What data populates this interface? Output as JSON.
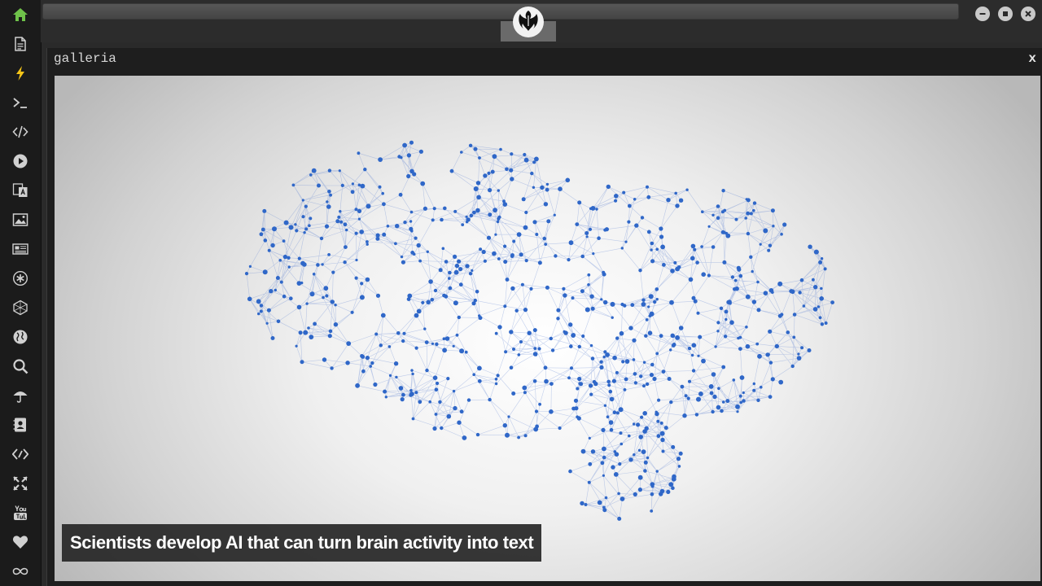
{
  "window": {
    "title": "galleria",
    "close_label": "x"
  },
  "caption": {
    "text": "Scientists develop AI that can turn brain activity into text"
  },
  "sidebar": {
    "items": [
      {
        "icon": "home-icon",
        "color": "#6fc24a"
      },
      {
        "icon": "document-icon",
        "color": "#d0d0d0"
      },
      {
        "icon": "lightning-icon",
        "color": "#f5c518"
      },
      {
        "icon": "terminal-icon",
        "color": "#d0d0d0"
      },
      {
        "icon": "code-icon",
        "color": "#d0d0d0"
      },
      {
        "icon": "play-icon",
        "color": "#d0d0d0"
      },
      {
        "icon": "translate-icon",
        "color": "#d0d0d0"
      },
      {
        "icon": "image-icon",
        "color": "#d0d0d0"
      },
      {
        "icon": "newspaper-icon",
        "color": "#d0d0d0"
      },
      {
        "icon": "asterisk-icon",
        "color": "#d0d0d0"
      },
      {
        "icon": "hexagon-icon",
        "color": "#d0d0d0"
      },
      {
        "icon": "globe-icon",
        "color": "#d0d0d0"
      },
      {
        "icon": "search-icon",
        "color": "#d0d0d0"
      },
      {
        "icon": "umbrella-icon",
        "color": "#d0d0d0"
      },
      {
        "icon": "contacts-icon",
        "color": "#d0d0d0"
      },
      {
        "icon": "diamond-code-icon",
        "color": "#d0d0d0"
      },
      {
        "icon": "fullscreen-icon",
        "color": "#d0d0d0"
      },
      {
        "icon": "youtube-icon",
        "color": "#d0d0d0"
      },
      {
        "icon": "heart-icon",
        "color": "#d0d0d0"
      },
      {
        "icon": "infinity-icon",
        "color": "#d0d0d0"
      }
    ]
  },
  "colors": {
    "accent_green": "#6fc24a",
    "accent_yellow": "#f5c518",
    "node_blue": "#2f67c8"
  }
}
